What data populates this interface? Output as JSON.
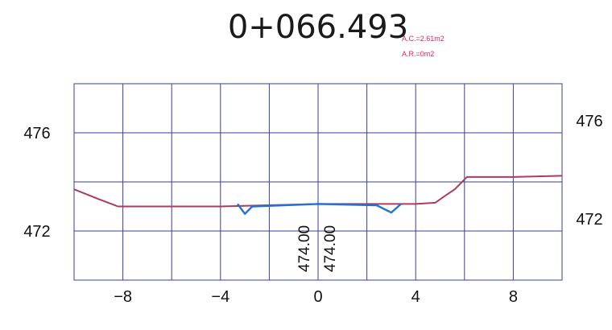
{
  "chart_data": {
    "type": "line",
    "title": "0+066.493",
    "annotations": [
      "A.C.=2.61m2",
      "A.R.=0m2"
    ],
    "xlim": [
      -10,
      10
    ],
    "ylim": [
      470,
      478
    ],
    "x_ticks": [
      -8,
      -4,
      0,
      4,
      8
    ],
    "x_tick_labels": [
      "−8",
      "−4",
      "0",
      "4",
      "8"
    ],
    "y_ticks": [
      472,
      476
    ],
    "y_tick_labels": [
      "472",
      "476"
    ],
    "grid": true,
    "grid_x_step": 2,
    "grid_y_step": 2,
    "center_labels": [
      "474.00",
      "474.00"
    ],
    "series": [
      {
        "color": "#b03a5b",
        "x": [
          -10,
          -9,
          -8.2,
          -4,
          0,
          4,
          4.8,
          5.3,
          5.6,
          6.1,
          8,
          10
        ],
        "y": [
          473.7,
          473.3,
          473.0,
          473.0,
          473.1,
          473.1,
          473.15,
          473.5,
          473.7,
          474.2,
          474.2,
          474.25
        ]
      },
      {
        "color": "#1e73d6",
        "x": [
          -3.3,
          -3.0,
          -2.7,
          0,
          2.4,
          3.0,
          3.4
        ],
        "y": [
          473.1,
          472.7,
          473.0,
          473.1,
          473.05,
          472.75,
          473.1
        ]
      }
    ],
    "colors": {
      "grid": "#3a3f9e",
      "ground": "#b03a5b",
      "design": "#1e73d6",
      "annotation": "#e0245e"
    }
  }
}
